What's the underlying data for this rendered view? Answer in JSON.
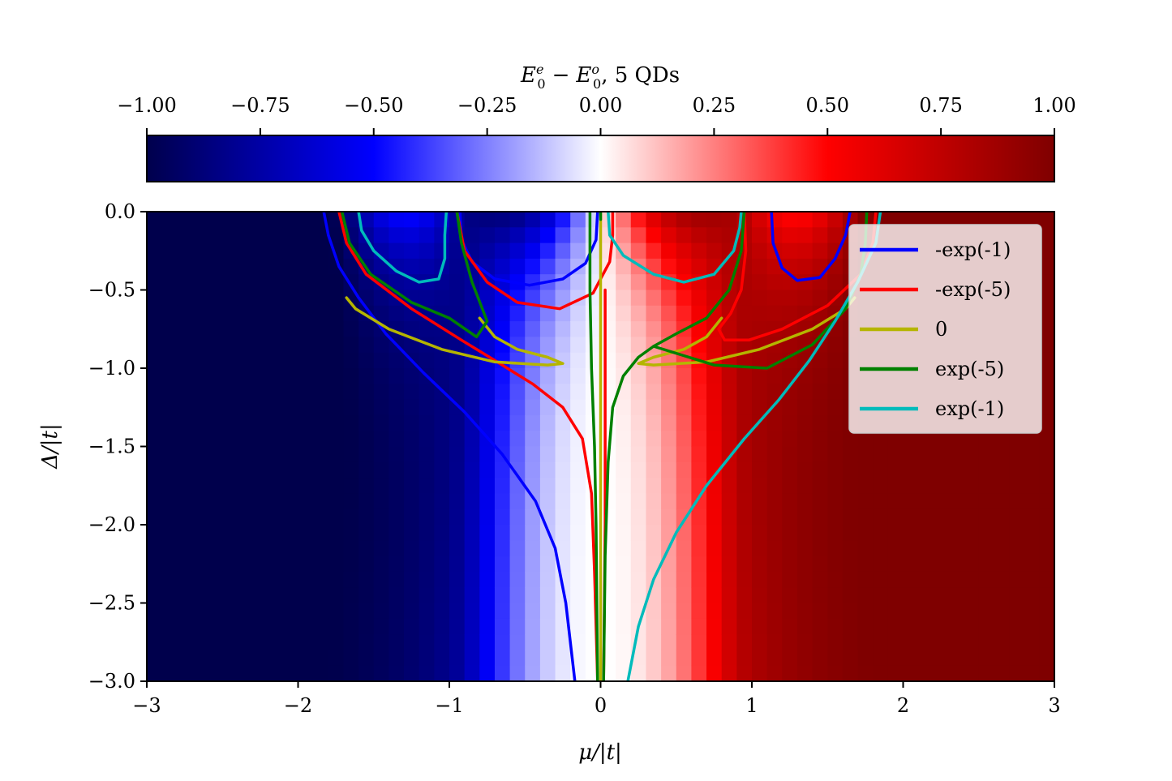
{
  "chart_data": {
    "type": "heatmap",
    "colorbar": {
      "title_main": "E",
      "title_sub1": "0",
      "title_sup1": "e",
      "title_minus": "−",
      "title_main2": "E",
      "title_sub2": "0",
      "title_sup2": "o",
      "title_tail": ", 5 QDs",
      "range": [
        -1.0,
        1.0
      ],
      "tick_values": [
        -1.0,
        -0.75,
        -0.5,
        -0.25,
        0.0,
        0.25,
        0.5,
        0.75,
        1.0
      ],
      "tick_labels": [
        "−1.00",
        "−0.75",
        "−0.50",
        "−0.25",
        "0.00",
        "0.25",
        "0.50",
        "0.75",
        "1.00"
      ],
      "colormap": "seismic",
      "colormap_stops": [
        "#00004c",
        "#0000ff",
        "#ffffff",
        "#ff0000",
        "#7f0000"
      ],
      "location": "top"
    },
    "xlabel": "μ/|t|",
    "ylabel": "Δ/|t|",
    "xlim": [
      -3.0,
      3.0
    ],
    "ylim": [
      -3.0,
      0.0
    ],
    "x_ticks": [
      -3,
      -2,
      -1,
      0,
      1,
      2,
      3
    ],
    "x_tick_labels": [
      "−3",
      "−2",
      "−1",
      "0",
      "1",
      "2",
      "3"
    ],
    "y_ticks": [
      0.0,
      -0.5,
      -1.0,
      -1.5,
      -2.0,
      -2.5,
      -3.0
    ],
    "y_tick_labels": [
      "0.0",
      "−0.5",
      "−1.0",
      "−1.5",
      "−2.0",
      "−2.5",
      "−3.0"
    ],
    "grid": false,
    "legend_placement": "upper-right",
    "contour_series": [
      {
        "name": "-exp(-1)",
        "color": "#0000ff",
        "paths": [
          [
            [
              -1.83,
              0.0
            ],
            [
              -1.8,
              -0.15
            ],
            [
              -1.73,
              -0.35
            ],
            [
              -1.6,
              -0.55
            ],
            [
              -1.42,
              -0.78
            ],
            [
              -1.17,
              -1.03
            ],
            [
              -0.9,
              -1.28
            ],
            [
              -0.65,
              -1.55
            ],
            [
              -0.43,
              -1.85
            ],
            [
              -0.3,
              -2.15
            ],
            [
              -0.23,
              -2.5
            ],
            [
              -0.17,
              -3.0
            ]
          ],
          [
            [
              -0.93,
              0.0
            ],
            [
              -0.92,
              -0.18
            ],
            [
              -0.85,
              -0.32
            ],
            [
              -0.7,
              -0.43
            ],
            [
              -0.47,
              -0.47
            ],
            [
              -0.25,
              -0.43
            ],
            [
              -0.1,
              -0.33
            ],
            [
              -0.03,
              -0.18
            ],
            [
              -0.02,
              0.0
            ]
          ],
          [
            [
              1.13,
              0.0
            ],
            [
              1.14,
              -0.2
            ],
            [
              1.2,
              -0.36
            ],
            [
              1.3,
              -0.44
            ],
            [
              1.45,
              -0.42
            ],
            [
              1.55,
              -0.3
            ],
            [
              1.62,
              -0.15
            ],
            [
              1.65,
              0.0
            ]
          ]
        ]
      },
      {
        "name": "-exp(-5)",
        "color": "#ff0000",
        "paths": [
          [
            [
              -1.73,
              0.0
            ],
            [
              -1.68,
              -0.2
            ],
            [
              -1.55,
              -0.4
            ],
            [
              -1.25,
              -0.62
            ],
            [
              -0.92,
              -0.82
            ],
            [
              -0.7,
              -0.95
            ],
            [
              -0.45,
              -1.1
            ],
            [
              -0.25,
              -1.25
            ],
            [
              -0.12,
              -1.45
            ],
            [
              -0.06,
              -1.8
            ],
            [
              -0.04,
              -2.3
            ],
            [
              -0.02,
              -3.0
            ]
          ],
          [
            [
              0.08,
              0.0
            ],
            [
              0.08,
              -0.15
            ],
            [
              0.06,
              -0.32
            ],
            [
              -0.05,
              -0.52
            ],
            [
              -0.27,
              -0.62
            ],
            [
              -0.55,
              -0.58
            ],
            [
              -0.75,
              -0.45
            ],
            [
              -0.9,
              -0.25
            ],
            [
              -0.95,
              0.0
            ]
          ],
          [
            [
              0.03,
              -0.5
            ],
            [
              0.03,
              -1.0
            ],
            [
              0.03,
              -2.0
            ],
            [
              0.02,
              -3.0
            ]
          ],
          [
            [
              0.95,
              0.0
            ],
            [
              0.96,
              -0.25
            ],
            [
              0.93,
              -0.5
            ],
            [
              0.86,
              -0.65
            ],
            [
              0.78,
              -0.75
            ],
            [
              0.82,
              -0.82
            ],
            [
              0.98,
              -0.82
            ],
            [
              1.2,
              -0.75
            ],
            [
              1.5,
              -0.6
            ],
            [
              1.72,
              -0.4
            ],
            [
              1.8,
              -0.2
            ],
            [
              1.82,
              0.0
            ]
          ]
        ]
      },
      {
        "name": "0",
        "color": "#b5b500",
        "paths": [
          [
            [
              0.0,
              0.0
            ],
            [
              0.0,
              -1.0
            ],
            [
              0.0,
              -2.0
            ],
            [
              0.0,
              -3.0
            ]
          ],
          [
            [
              -0.8,
              -0.68
            ],
            [
              -0.7,
              -0.8
            ],
            [
              -0.55,
              -0.88
            ],
            [
              -0.35,
              -0.93
            ],
            [
              -0.25,
              -0.97
            ],
            [
              -0.35,
              -0.98
            ],
            [
              -0.7,
              -0.96
            ],
            [
              -1.05,
              -0.88
            ],
            [
              -1.4,
              -0.75
            ],
            [
              -1.62,
              -0.62
            ],
            [
              -1.68,
              -0.55
            ]
          ],
          [
            [
              0.8,
              -0.68
            ],
            [
              0.7,
              -0.8
            ],
            [
              0.55,
              -0.88
            ],
            [
              0.35,
              -0.93
            ],
            [
              0.25,
              -0.97
            ],
            [
              0.35,
              -0.98
            ],
            [
              0.7,
              -0.96
            ],
            [
              1.05,
              -0.88
            ],
            [
              1.4,
              -0.75
            ],
            [
              1.62,
              -0.62
            ],
            [
              1.68,
              -0.55
            ]
          ]
        ]
      },
      {
        "name": "exp(-5)",
        "color": "#008000",
        "paths": [
          [
            [
              -1.71,
              0.0
            ],
            [
              -1.66,
              -0.2
            ],
            [
              -1.52,
              -0.4
            ],
            [
              -1.25,
              -0.58
            ],
            [
              -1.0,
              -0.68
            ],
            [
              -0.82,
              -0.8
            ],
            [
              -0.75,
              -0.7
            ],
            [
              -0.85,
              -0.45
            ],
            [
              -0.92,
              -0.2
            ],
            [
              -0.95,
              0.0
            ]
          ],
          [
            [
              -0.07,
              0.0
            ],
            [
              -0.07,
              -0.5
            ],
            [
              -0.06,
              -1.0
            ],
            [
              -0.04,
              -1.5
            ],
            [
              -0.03,
              -2.0
            ],
            [
              -0.02,
              -3.0
            ]
          ],
          [
            [
              0.0,
              -0.05
            ],
            [
              0.0,
              0.0
            ]
          ],
          [
            [
              0.95,
              0.0
            ],
            [
              0.93,
              -0.25
            ],
            [
              0.85,
              -0.5
            ],
            [
              0.7,
              -0.68
            ],
            [
              0.5,
              -0.78
            ],
            [
              0.35,
              -0.86
            ],
            [
              0.25,
              -0.93
            ],
            [
              0.15,
              -1.05
            ],
            [
              0.08,
              -1.25
            ],
            [
              0.05,
              -1.6
            ],
            [
              0.03,
              -2.2
            ],
            [
              0.02,
              -3.0
            ]
          ],
          [
            [
              0.35,
              -0.86
            ],
            [
              0.75,
              -0.98
            ],
            [
              1.1,
              -1.0
            ],
            [
              1.4,
              -0.85
            ],
            [
              1.62,
              -0.62
            ],
            [
              1.72,
              -0.4
            ],
            [
              1.75,
              -0.2
            ],
            [
              1.76,
              0.0
            ]
          ]
        ]
      },
      {
        "name": "exp(-1)",
        "color": "#00bbbb",
        "paths": [
          [
            [
              -1.6,
              0.0
            ],
            [
              -1.58,
              -0.12
            ],
            [
              -1.5,
              -0.25
            ],
            [
              -1.35,
              -0.38
            ],
            [
              -1.2,
              -0.45
            ],
            [
              -1.07,
              -0.43
            ],
            [
              -1.03,
              -0.3
            ],
            [
              -1.03,
              -0.15
            ],
            [
              -1.02,
              0.0
            ]
          ],
          [
            [
              0.05,
              0.0
            ],
            [
              0.06,
              -0.15
            ],
            [
              0.15,
              -0.28
            ],
            [
              0.35,
              -0.4
            ],
            [
              0.55,
              -0.45
            ],
            [
              0.75,
              -0.4
            ],
            [
              0.88,
              -0.25
            ],
            [
              0.92,
              -0.1
            ],
            [
              0.93,
              0.0
            ]
          ],
          [
            [
              1.85,
              0.0
            ],
            [
              1.82,
              -0.2
            ],
            [
              1.7,
              -0.45
            ],
            [
              1.55,
              -0.7
            ],
            [
              1.38,
              -0.95
            ],
            [
              1.18,
              -1.2
            ],
            [
              0.95,
              -1.45
            ],
            [
              0.7,
              -1.75
            ],
            [
              0.5,
              -2.05
            ],
            [
              0.35,
              -2.35
            ],
            [
              0.25,
              -2.65
            ],
            [
              0.18,
              -3.0
            ]
          ]
        ]
      }
    ]
  }
}
